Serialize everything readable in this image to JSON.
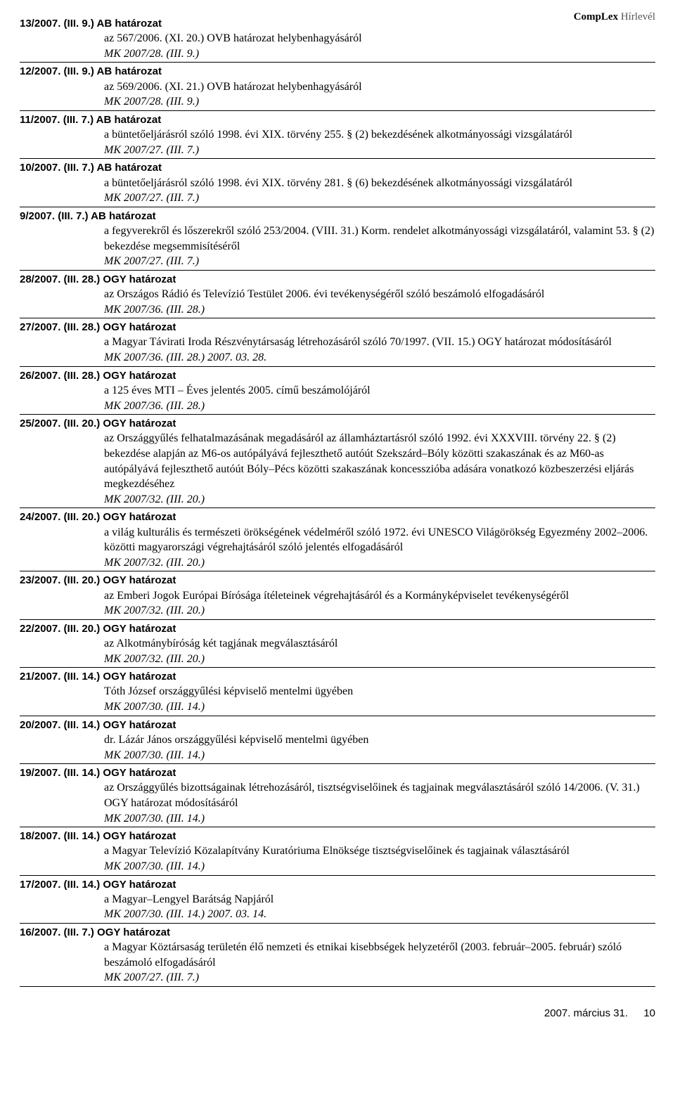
{
  "header": {
    "brand_bold": "CompLex",
    "brand_light": "Hírlevél"
  },
  "entries": [
    {
      "title": "13/2007. (III. 9.) AB határozat",
      "desc": "az 567/2006. (XI. 20.) OVB határozat helybenhagyásáról",
      "ref": "MK 2007/28. (III. 9.)"
    },
    {
      "title": "12/2007. (III. 9.) AB határozat",
      "desc": "az 569/2006. (XI. 21.) OVB határozat helybenhagyásáról",
      "ref": "MK 2007/28. (III. 9.)"
    },
    {
      "title": "11/2007. (III. 7.) AB határozat",
      "desc": "a büntetőeljárásról szóló 1998. évi XIX. törvény 255. § (2) bekezdésének alkotmányossági vizsgálatáról",
      "ref": "MK 2007/27. (III. 7.)"
    },
    {
      "title": "10/2007. (III. 7.) AB határozat",
      "desc": "a büntetőeljárásról szóló 1998. évi XIX. törvény 281. § (6) bekezdésének alkotmányossági vizsgálatáról",
      "ref": "MK 2007/27. (III. 7.)"
    },
    {
      "title": "9/2007. (III. 7.) AB határozat",
      "desc": "a fegyverekről és lőszerekről szóló 253/2004. (VIII. 31.) Korm. rendelet alkotmányossági vizsgálatáról, valamint 53. § (2) bekezdése megsemmisítéséről",
      "ref": "MK 2007/27. (III. 7.)"
    },
    {
      "title": "28/2007. (III. 28.) OGY határozat",
      "desc": "az Országos Rádió és Televízió Testület 2006. évi tevékenységéről szóló beszámoló elfogadásáról",
      "ref": "MK 2007/36. (III. 28.)"
    },
    {
      "title": "27/2007. (III. 28.) OGY határozat",
      "desc": "a Magyar Távirati Iroda Részvénytársaság létrehozásáról szóló 70/1997. (VII. 15.) OGY határozat módosításáról",
      "ref": "MK 2007/36. (III. 28.)      2007. 03. 28."
    },
    {
      "title": "26/2007. (III. 28.) OGY határozat",
      "desc": "a 125 éves MTI – Éves jelentés 2005. című beszámolójáról",
      "ref": "MK 2007/36. (III. 28.)"
    },
    {
      "title": "25/2007. (III. 20.) OGY határozat",
      "desc": "az Országgyűlés felhatalmazásának megadásáról az államháztartásról szóló 1992. évi XXXVIII. törvény 22. § (2) bekezdése alapján az M6-os autópályává fejleszthető autóút Szekszárd–Bóly közötti szakaszának és az M60-as autópályává fejleszthető autóút Bóly–Pécs közötti szakaszának koncesszióba adására vonatkozó közbeszerzési eljárás megkezdéséhez",
      "ref": "MK 2007/32. (III. 20.)"
    },
    {
      "title": "24/2007. (III. 20.) OGY határozat",
      "desc": "a világ kulturális és természeti örökségének védelméről szóló 1972. évi UNESCO Világörökség Egyezmény 2002–2006. közötti magyarországi végrehajtásáról szóló jelentés elfogadásáról",
      "ref": "MK 2007/32. (III. 20.)"
    },
    {
      "title": "23/2007. (III. 20.) OGY határozat",
      "desc": "az Emberi Jogok Európai Bírósága ítéleteinek végrehajtásáról és a Kormányképviselet tevékenységéről",
      "ref": "MK 2007/32. (III. 20.)"
    },
    {
      "title": "22/2007. (III. 20.) OGY határozat",
      "desc": "az Alkotmánybíróság két tagjának megválasztásáról",
      "ref": "MK 2007/32. (III. 20.)"
    },
    {
      "title": "21/2007. (III. 14.) OGY határozat",
      "desc": "Tóth József országgyűlési képviselő mentelmi ügyében",
      "ref": "MK 2007/30. (III. 14.)"
    },
    {
      "title": "20/2007. (III. 14.) OGY határozat",
      "desc": "dr. Lázár János országgyűlési képviselő mentelmi ügyében",
      "ref": "MK 2007/30. (III. 14.)"
    },
    {
      "title": "19/2007. (III. 14.) OGY határozat",
      "desc": "az Országgyűlés bizottságainak létrehozásáról, tisztségviselőinek és tagjainak megválasztásáról szóló 14/2006. (V. 31.) OGY határozat módosításáról",
      "ref": "MK 2007/30. (III. 14.)"
    },
    {
      "title": "18/2007. (III. 14.) OGY határozat",
      "desc": "a Magyar Televízió Közalapítvány Kuratóriuma Elnöksége tisztségviselőinek és tagjainak választásáról",
      "ref": "MK 2007/30. (III. 14.)"
    },
    {
      "title": "17/2007. (III. 14.) OGY határozat",
      "desc": "a Magyar–Lengyel Barátság Napjáról",
      "ref": "MK 2007/30. (III. 14.)      2007. 03. 14."
    },
    {
      "title": "16/2007. (III. 7.) OGY határozat",
      "desc": "a Magyar Köztársaság területén élő nemzeti és etnikai kisebbségek helyzetéről (2003. február–2005. február) szóló beszámoló elfogadásáról",
      "ref": "MK 2007/27. (III. 7.)"
    }
  ],
  "footer": {
    "date": "2007. március 31.",
    "page": "10"
  }
}
